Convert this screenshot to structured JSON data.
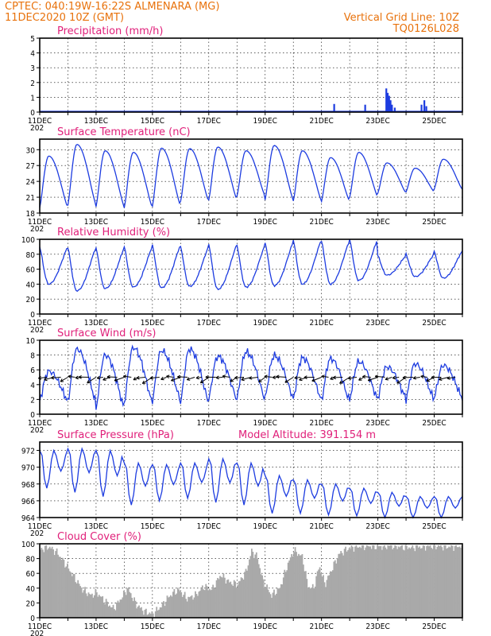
{
  "header": {
    "station_line": "CPTEC:   040:19W-16:22S   ALMENARA (MG)",
    "date_line": "11DEC2020  10Z (GMT)",
    "grid_note": "Vertical Grid Line: 10Z",
    "run_code": "TQ0126L028"
  },
  "colors": {
    "header": "#e8720c",
    "title": "#e0207a",
    "line": "#1d3ce0",
    "cloud": "#a9a9a9",
    "arrow": "#000000"
  },
  "x_axis": {
    "labels": [
      "11DEC",
      "13DEC",
      "15DEC",
      "17DEC",
      "19DEC",
      "21DEC",
      "23DEC",
      "25DEC"
    ],
    "start_label": "11DEC",
    "year_fragment": "202",
    "days": 15
  },
  "chart_data": [
    {
      "id": "precipitation",
      "type": "bar",
      "title": "Precipitation (mm/h)",
      "ylim": [
        0,
        5
      ],
      "yticks": [
        0,
        1,
        2,
        3,
        4,
        5
      ],
      "grid": true,
      "bars": [
        {
          "day": 10.45,
          "value": 0.55
        },
        {
          "day": 11.55,
          "value": 0.5
        },
        {
          "day": 12.3,
          "value": 1.6
        },
        {
          "day": 12.35,
          "value": 1.3
        },
        {
          "day": 12.4,
          "value": 1.1
        },
        {
          "day": 12.45,
          "value": 0.8
        },
        {
          "day": 12.5,
          "value": 0.5
        },
        {
          "day": 12.6,
          "value": 0.3
        },
        {
          "day": 13.55,
          "value": 0.5
        },
        {
          "day": 13.65,
          "value": 0.8
        },
        {
          "day": 13.72,
          "value": 0.4
        }
      ]
    },
    {
      "id": "temperature",
      "type": "line",
      "title": "Surface Temperature (nC)",
      "ylim": [
        18,
        32
      ],
      "yticks": [
        18,
        21,
        24,
        27,
        30
      ],
      "grid": true,
      "daily_min": [
        19,
        19.5,
        19.2,
        19.0,
        19.3,
        20.2,
        20.5,
        21.2,
        20.5,
        20.3,
        20.2,
        21,
        21.8,
        22,
        22.5
      ],
      "daily_max": [
        28.8,
        31.0,
        29.8,
        29.5,
        30.3,
        30.2,
        30.5,
        29.8,
        30.8,
        29.8,
        28.5,
        29.5,
        27.5,
        26.5,
        28.2
      ]
    },
    {
      "id": "humidity",
      "type": "line",
      "title": "Relative Humidity (%)",
      "ylim": [
        0,
        100
      ],
      "yticks": [
        0,
        20,
        40,
        60,
        80,
        100
      ],
      "grid": true,
      "daily_min": [
        40,
        31,
        34,
        36,
        35,
        37,
        33,
        36,
        38,
        40,
        40,
        45,
        52,
        50,
        48
      ],
      "daily_max": [
        90,
        89,
        88,
        90,
        92,
        90,
        93,
        92,
        96,
        99,
        98,
        100,
        78,
        80,
        84
      ]
    },
    {
      "id": "wind",
      "type": "line",
      "title": "Surface Wind (m/s)",
      "ylim": [
        0,
        10
      ],
      "yticks": [
        0,
        2,
        4,
        6,
        8,
        10
      ],
      "grid": true,
      "daily_min": [
        1.8,
        1.6,
        0.8,
        1.5,
        1.8,
        1.6,
        2.0,
        2.0,
        2.2,
        2.0,
        1.8,
        2.0,
        2.2,
        2.0,
        2.2
      ],
      "daily_max": [
        5.8,
        8.8,
        8.0,
        9.0,
        8.6,
        8.8,
        7.8,
        8.4,
        7.9,
        7.6,
        7.5,
        7.1,
        6.4,
        6.8,
        6.6
      ]
    },
    {
      "id": "pressure",
      "type": "line",
      "title": "Surface Pressure (hPa)",
      "ylim": [
        964,
        973
      ],
      "yticks": [
        964,
        966,
        968,
        970,
        972
      ],
      "grid": true,
      "annotation": "Model Altitude: 391.154  m",
      "daily_high": [
        972.0,
        972.2,
        972.0,
        970.5,
        970.3,
        970.5,
        971.0,
        970.5,
        969.0,
        968.5,
        968.0,
        967.5,
        967.0,
        966.5,
        966.5
      ],
      "daily_low": [
        967.5,
        967.0,
        966.5,
        965.5,
        966.0,
        966.3,
        965.8,
        965.5,
        964.5,
        964.5,
        964.3,
        964.2,
        964.0,
        964.0,
        964.0
      ]
    },
    {
      "id": "cloud",
      "type": "area",
      "title": "Cloud Cover (%)",
      "ylim": [
        0,
        100
      ],
      "yticks": [
        0,
        20,
        40,
        60,
        80,
        100
      ],
      "grid": true,
      "keypoints": [
        [
          0.0,
          92
        ],
        [
          0.3,
          96
        ],
        [
          0.6,
          88
        ],
        [
          0.9,
          72
        ],
        [
          1.2,
          55
        ],
        [
          1.5,
          38
        ],
        [
          1.8,
          30
        ],
        [
          2.0,
          34
        ],
        [
          2.3,
          22
        ],
        [
          2.6,
          12
        ],
        [
          2.9,
          28
        ],
        [
          3.1,
          40
        ],
        [
          3.4,
          18
        ],
        [
          3.7,
          8
        ],
        [
          4.0,
          5
        ],
        [
          4.3,
          16
        ],
        [
          4.6,
          30
        ],
        [
          4.9,
          38
        ],
        [
          5.2,
          26
        ],
        [
          5.5,
          30
        ],
        [
          5.8,
          42
        ],
        [
          6.1,
          38
        ],
        [
          6.4,
          58
        ],
        [
          6.7,
          48
        ],
        [
          7.0,
          45
        ],
        [
          7.3,
          62
        ],
        [
          7.5,
          90
        ],
        [
          7.7,
          82
        ],
        [
          7.9,
          50
        ],
        [
          8.2,
          30
        ],
        [
          8.5,
          40
        ],
        [
          8.8,
          74
        ],
        [
          9.0,
          91
        ],
        [
          9.3,
          82
        ],
        [
          9.5,
          42
        ],
        [
          9.7,
          40
        ],
        [
          9.9,
          70
        ],
        [
          10.1,
          45
        ],
        [
          10.3,
          62
        ],
        [
          10.6,
          86
        ],
        [
          10.9,
          93
        ],
        [
          11.2,
          96
        ],
        [
          11.6,
          97
        ],
        [
          12.0,
          96
        ],
        [
          12.5,
          97
        ],
        [
          13.0,
          95
        ],
        [
          13.5,
          96
        ],
        [
          14.0,
          97
        ],
        [
          14.5,
          96
        ],
        [
          15.0,
          97
        ]
      ]
    }
  ]
}
